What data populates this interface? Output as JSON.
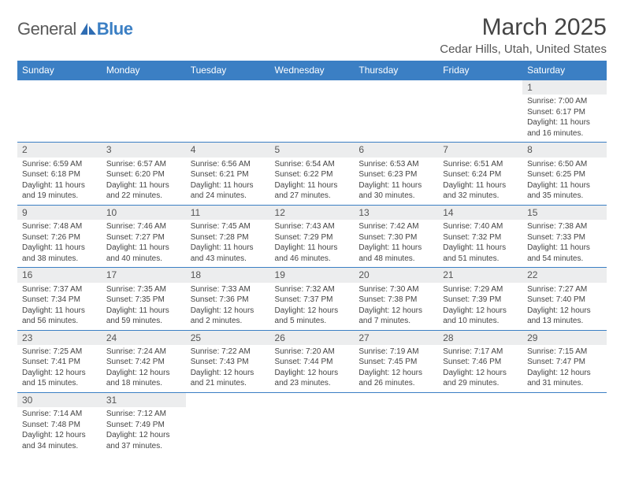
{
  "brand": {
    "part1": "General",
    "part2": "Blue"
  },
  "title": "March 2025",
  "location": "Cedar Hills, Utah, United States",
  "colors": {
    "header_bg": "#3b7fc4",
    "header_text": "#ffffff",
    "daynum_bg": "#ecedee",
    "border": "#3b7fc4",
    "body_text": "#444444",
    "page_bg": "#ffffff"
  },
  "day_labels": [
    "Sunday",
    "Monday",
    "Tuesday",
    "Wednesday",
    "Thursday",
    "Friday",
    "Saturday"
  ],
  "weeks": [
    [
      null,
      null,
      null,
      null,
      null,
      null,
      {
        "n": "1",
        "sr": "Sunrise: 7:00 AM",
        "ss": "Sunset: 6:17 PM",
        "dl": "Daylight: 11 hours and 16 minutes."
      }
    ],
    [
      {
        "n": "2",
        "sr": "Sunrise: 6:59 AM",
        "ss": "Sunset: 6:18 PM",
        "dl": "Daylight: 11 hours and 19 minutes."
      },
      {
        "n": "3",
        "sr": "Sunrise: 6:57 AM",
        "ss": "Sunset: 6:20 PM",
        "dl": "Daylight: 11 hours and 22 minutes."
      },
      {
        "n": "4",
        "sr": "Sunrise: 6:56 AM",
        "ss": "Sunset: 6:21 PM",
        "dl": "Daylight: 11 hours and 24 minutes."
      },
      {
        "n": "5",
        "sr": "Sunrise: 6:54 AM",
        "ss": "Sunset: 6:22 PM",
        "dl": "Daylight: 11 hours and 27 minutes."
      },
      {
        "n": "6",
        "sr": "Sunrise: 6:53 AM",
        "ss": "Sunset: 6:23 PM",
        "dl": "Daylight: 11 hours and 30 minutes."
      },
      {
        "n": "7",
        "sr": "Sunrise: 6:51 AM",
        "ss": "Sunset: 6:24 PM",
        "dl": "Daylight: 11 hours and 32 minutes."
      },
      {
        "n": "8",
        "sr": "Sunrise: 6:50 AM",
        "ss": "Sunset: 6:25 PM",
        "dl": "Daylight: 11 hours and 35 minutes."
      }
    ],
    [
      {
        "n": "9",
        "sr": "Sunrise: 7:48 AM",
        "ss": "Sunset: 7:26 PM",
        "dl": "Daylight: 11 hours and 38 minutes."
      },
      {
        "n": "10",
        "sr": "Sunrise: 7:46 AM",
        "ss": "Sunset: 7:27 PM",
        "dl": "Daylight: 11 hours and 40 minutes."
      },
      {
        "n": "11",
        "sr": "Sunrise: 7:45 AM",
        "ss": "Sunset: 7:28 PM",
        "dl": "Daylight: 11 hours and 43 minutes."
      },
      {
        "n": "12",
        "sr": "Sunrise: 7:43 AM",
        "ss": "Sunset: 7:29 PM",
        "dl": "Daylight: 11 hours and 46 minutes."
      },
      {
        "n": "13",
        "sr": "Sunrise: 7:42 AM",
        "ss": "Sunset: 7:30 PM",
        "dl": "Daylight: 11 hours and 48 minutes."
      },
      {
        "n": "14",
        "sr": "Sunrise: 7:40 AM",
        "ss": "Sunset: 7:32 PM",
        "dl": "Daylight: 11 hours and 51 minutes."
      },
      {
        "n": "15",
        "sr": "Sunrise: 7:38 AM",
        "ss": "Sunset: 7:33 PM",
        "dl": "Daylight: 11 hours and 54 minutes."
      }
    ],
    [
      {
        "n": "16",
        "sr": "Sunrise: 7:37 AM",
        "ss": "Sunset: 7:34 PM",
        "dl": "Daylight: 11 hours and 56 minutes."
      },
      {
        "n": "17",
        "sr": "Sunrise: 7:35 AM",
        "ss": "Sunset: 7:35 PM",
        "dl": "Daylight: 11 hours and 59 minutes."
      },
      {
        "n": "18",
        "sr": "Sunrise: 7:33 AM",
        "ss": "Sunset: 7:36 PM",
        "dl": "Daylight: 12 hours and 2 minutes."
      },
      {
        "n": "19",
        "sr": "Sunrise: 7:32 AM",
        "ss": "Sunset: 7:37 PM",
        "dl": "Daylight: 12 hours and 5 minutes."
      },
      {
        "n": "20",
        "sr": "Sunrise: 7:30 AM",
        "ss": "Sunset: 7:38 PM",
        "dl": "Daylight: 12 hours and 7 minutes."
      },
      {
        "n": "21",
        "sr": "Sunrise: 7:29 AM",
        "ss": "Sunset: 7:39 PM",
        "dl": "Daylight: 12 hours and 10 minutes."
      },
      {
        "n": "22",
        "sr": "Sunrise: 7:27 AM",
        "ss": "Sunset: 7:40 PM",
        "dl": "Daylight: 12 hours and 13 minutes."
      }
    ],
    [
      {
        "n": "23",
        "sr": "Sunrise: 7:25 AM",
        "ss": "Sunset: 7:41 PM",
        "dl": "Daylight: 12 hours and 15 minutes."
      },
      {
        "n": "24",
        "sr": "Sunrise: 7:24 AM",
        "ss": "Sunset: 7:42 PM",
        "dl": "Daylight: 12 hours and 18 minutes."
      },
      {
        "n": "25",
        "sr": "Sunrise: 7:22 AM",
        "ss": "Sunset: 7:43 PM",
        "dl": "Daylight: 12 hours and 21 minutes."
      },
      {
        "n": "26",
        "sr": "Sunrise: 7:20 AM",
        "ss": "Sunset: 7:44 PM",
        "dl": "Daylight: 12 hours and 23 minutes."
      },
      {
        "n": "27",
        "sr": "Sunrise: 7:19 AM",
        "ss": "Sunset: 7:45 PM",
        "dl": "Daylight: 12 hours and 26 minutes."
      },
      {
        "n": "28",
        "sr": "Sunrise: 7:17 AM",
        "ss": "Sunset: 7:46 PM",
        "dl": "Daylight: 12 hours and 29 minutes."
      },
      {
        "n": "29",
        "sr": "Sunrise: 7:15 AM",
        "ss": "Sunset: 7:47 PM",
        "dl": "Daylight: 12 hours and 31 minutes."
      }
    ],
    [
      {
        "n": "30",
        "sr": "Sunrise: 7:14 AM",
        "ss": "Sunset: 7:48 PM",
        "dl": "Daylight: 12 hours and 34 minutes."
      },
      {
        "n": "31",
        "sr": "Sunrise: 7:12 AM",
        "ss": "Sunset: 7:49 PM",
        "dl": "Daylight: 12 hours and 37 minutes."
      },
      null,
      null,
      null,
      null,
      null
    ]
  ]
}
